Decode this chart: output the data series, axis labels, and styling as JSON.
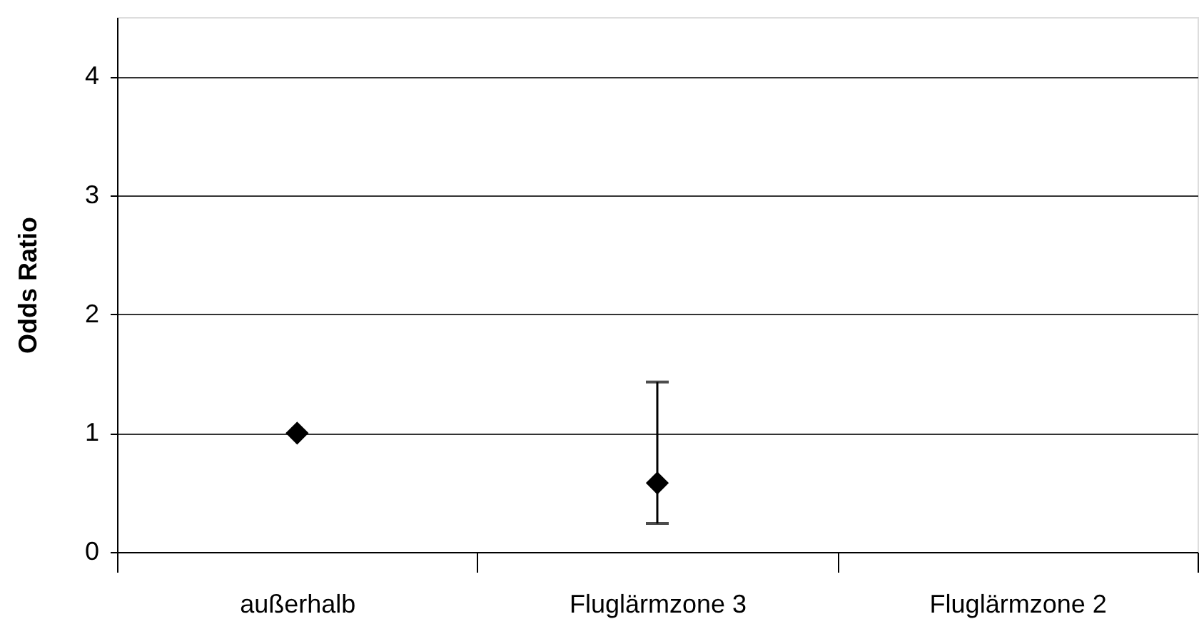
{
  "chart_data": {
    "type": "scatter",
    "ylabel": "Odds Ratio",
    "categories": [
      "außerhalb",
      "Fluglärmzone 3",
      "Fluglärmzone 2"
    ],
    "values": [
      1,
      0.58,
      null
    ],
    "errors": [
      null,
      [
        0.24,
        1.43
      ],
      null
    ],
    "color": "#000000",
    "marker": "diamond",
    "ylim": [
      0,
      4.5
    ],
    "yticks": [
      0,
      1,
      2,
      3,
      4
    ],
    "grid": "y"
  }
}
